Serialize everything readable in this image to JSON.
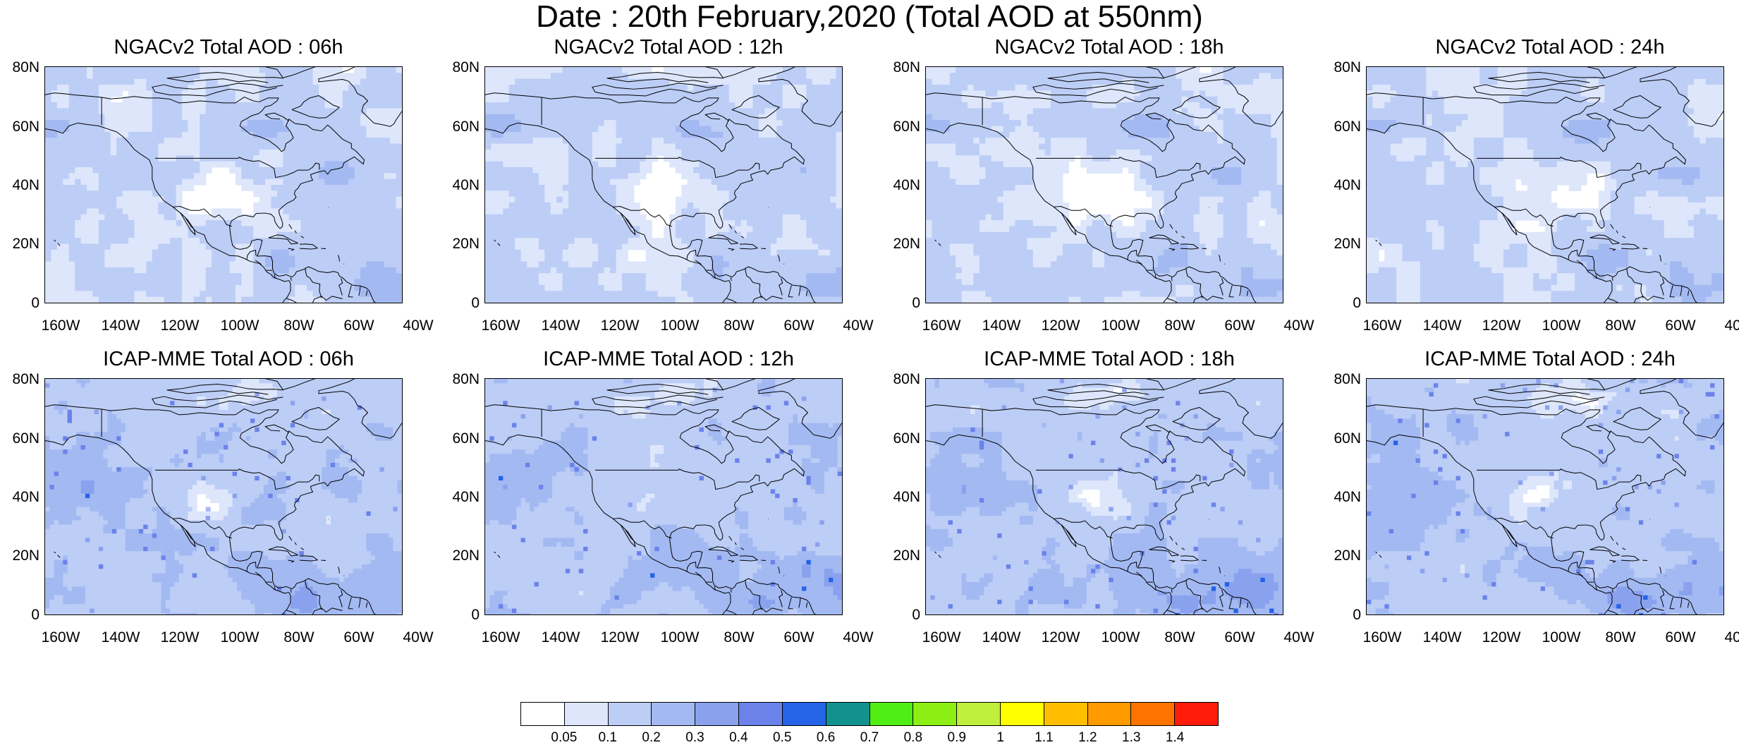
{
  "figure": {
    "title": "Date : 20th February,2020 (Total AOD at 550nm)"
  },
  "axes": {
    "lat_ticks": [
      "80N",
      "60N",
      "40N",
      "20N",
      "0"
    ],
    "lon_ticks": [
      "160W",
      "140W",
      "120W",
      "100W",
      "80W",
      "60W",
      "40W"
    ]
  },
  "panels": [
    {
      "id": "ngac-06",
      "title": "NGACv2 Total AOD : 06h",
      "model": "NGACv2",
      "hour": "06h"
    },
    {
      "id": "ngac-12",
      "title": "NGACv2 Total AOD : 12h",
      "model": "NGACv2",
      "hour": "12h"
    },
    {
      "id": "ngac-18",
      "title": "NGACv2 Total AOD : 18h",
      "model": "NGACv2",
      "hour": "18h"
    },
    {
      "id": "ngac-24",
      "title": "NGACv2 Total AOD : 24h",
      "model": "NGACv2",
      "hour": "24h"
    },
    {
      "id": "icap-06",
      "title": "ICAP-MME Total AOD : 06h",
      "model": "ICAP-MME",
      "hour": "06h"
    },
    {
      "id": "icap-12",
      "title": "ICAP-MME Total AOD : 12h",
      "model": "ICAP-MME",
      "hour": "12h"
    },
    {
      "id": "icap-18",
      "title": "ICAP-MME Total AOD : 18h",
      "model": "ICAP-MME",
      "hour": "18h"
    },
    {
      "id": "icap-24",
      "title": "ICAP-MME Total AOD : 24h",
      "model": "ICAP-MME",
      "hour": "24h"
    }
  ],
  "colorbar": {
    "labels": [
      "0.05",
      "0.1",
      "0.2",
      "0.3",
      "0.4",
      "0.5",
      "0.6",
      "0.7",
      "0.8",
      "0.9",
      "1",
      "1.1",
      "1.2",
      "1.3",
      "1.4"
    ],
    "colors": [
      "#ffffff",
      "#dde6fb",
      "#bccdf6",
      "#a3b9f2",
      "#8aa2ee",
      "#6a82ea",
      "#2563e8",
      "#12928f",
      "#50ee14",
      "#8cee14",
      "#c0ee3c",
      "#ffff00",
      "#ffbf00",
      "#ff9a00",
      "#ff7400",
      "#ff1a0a"
    ]
  }
}
